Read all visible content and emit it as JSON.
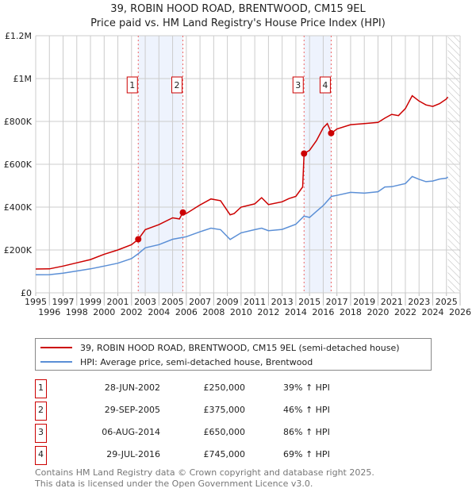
{
  "title": "39, ROBIN HOOD ROAD, BRENTWOOD, CM15 9EL",
  "subtitle": "Price paid vs. HM Land Registry's House Price Index (HPI)",
  "chart_data": {
    "type": "line",
    "title": "39, ROBIN HOOD ROAD, BRENTWOOD, CM15 9EL",
    "xlim": [
      1995,
      2026
    ],
    "ylim": [
      0,
      1200000
    ],
    "xticks": [
      1995,
      1996,
      1997,
      1998,
      1999,
      2000,
      2001,
      2002,
      2003,
      2004,
      2005,
      2006,
      2007,
      2008,
      2009,
      2010,
      2011,
      2012,
      2013,
      2014,
      2015,
      2016,
      2017,
      2018,
      2019,
      2020,
      2021,
      2022,
      2023,
      2024,
      2025,
      2026
    ],
    "yticks": [
      {
        "v": 0,
        "label": "£0"
      },
      {
        "v": 200000,
        "label": "£200K"
      },
      {
        "v": 400000,
        "label": "£400K"
      },
      {
        "v": 600000,
        "label": "£600K"
      },
      {
        "v": 800000,
        "label": "£800K"
      },
      {
        "v": 1000000,
        "label": "£1M"
      },
      {
        "v": 1200000,
        "label": "£1.2M"
      }
    ],
    "grid": true,
    "series": [
      {
        "name": "39, ROBIN HOOD ROAD, BRENTWOOD, CM15 9EL (semi-detached house)",
        "color": "#cc0000",
        "x": [
          1995,
          1996,
          1997,
          1998,
          1999,
          2000,
          2001,
          2002,
          2002.5,
          2003,
          2004,
          2005,
          2005.5,
          2005.75,
          2006,
          2007,
          2007.8,
          2008.5,
          2009.2,
          2009.5,
          2010,
          2011,
          2011.5,
          2012,
          2013,
          2013.5,
          2014,
          2014.5,
          2014.6,
          2015,
          2015.5,
          2016,
          2016.3,
          2016.6,
          2017,
          2018,
          2019,
          2020,
          2020.5,
          2021,
          2021.5,
          2022,
          2022.5,
          2023,
          2023.5,
          2024,
          2024.5,
          2025,
          2025.1
        ],
        "y": [
          111000,
          112000,
          125000,
          140000,
          155000,
          180000,
          200000,
          225000,
          250000,
          295000,
          318000,
          350000,
          345000,
          375000,
          370000,
          410000,
          438000,
          430000,
          364000,
          370000,
          400000,
          415000,
          444000,
          412000,
          425000,
          440000,
          450000,
          494000,
          650000,
          665000,
          710000,
          770000,
          790000,
          745000,
          765000,
          785000,
          790000,
          795000,
          815000,
          833000,
          827000,
          860000,
          920000,
          895000,
          877000,
          870000,
          883000,
          905000,
          914000
        ]
      },
      {
        "name": "HPI: Average price, semi-detached house, Brentwood",
        "color": "#5b8fd6",
        "x": [
          1995,
          1996,
          1997,
          1998,
          1999,
          2000,
          2001,
          2002,
          2002.5,
          2003,
          2004,
          2005,
          2005.75,
          2006,
          2007,
          2007.8,
          2008.5,
          2009.2,
          2010,
          2011,
          2011.5,
          2012,
          2013,
          2014,
          2014.6,
          2015,
          2015.5,
          2016,
          2016.6,
          2017,
          2018,
          2019,
          2020,
          2020.5,
          2021,
          2022,
          2022.5,
          2023,
          2023.5,
          2024,
          2024.5,
          2025,
          2025.1
        ],
        "y": [
          84000,
          85000,
          92000,
          102000,
          112000,
          125000,
          138000,
          160000,
          183000,
          210000,
          225000,
          250000,
          259000,
          262000,
          285000,
          302000,
          295000,
          249000,
          280000,
          295000,
          302000,
          290000,
          296000,
          320000,
          358000,
          352000,
          380000,
          407000,
          450000,
          455000,
          469000,
          465000,
          472000,
          494000,
          495000,
          510000,
          543000,
          530000,
          519000,
          522000,
          531000,
          535000,
          541000
        ]
      }
    ],
    "sales": [
      {
        "label": "1",
        "year": 2002.49,
        "price": 250000
      },
      {
        "label": "2",
        "year": 2005.75,
        "price": 375000
      },
      {
        "label": "3",
        "year": 2014.6,
        "price": 650000
      },
      {
        "label": "4",
        "year": 2016.58,
        "price": 745000
      }
    ],
    "shaded": [
      [
        2002.49,
        2005.75
      ],
      [
        2014.6,
        2016.58
      ]
    ],
    "forecast_from": 2025.1,
    "legend_position": "below"
  },
  "legend": [
    "39, ROBIN HOOD ROAD, BRENTWOOD, CM15 9EL (semi-detached house)",
    "HPI: Average price, semi-detached house, Brentwood"
  ],
  "transactions": [
    {
      "num": "1",
      "date": "28-JUN-2002",
      "price": "£250,000",
      "hpi": "39% ↑ HPI"
    },
    {
      "num": "2",
      "date": "29-SEP-2005",
      "price": "£375,000",
      "hpi": "46% ↑ HPI"
    },
    {
      "num": "3",
      "date": "06-AUG-2014",
      "price": "£650,000",
      "hpi": "86% ↑ HPI"
    },
    {
      "num": "4",
      "date": "29-JUL-2016",
      "price": "£745,000",
      "hpi": "69% ↑ HPI"
    }
  ],
  "footer": [
    "Contains HM Land Registry data © Crown copyright and database right 2025.",
    "This data is licensed under the Open Government Licence v3.0."
  ]
}
